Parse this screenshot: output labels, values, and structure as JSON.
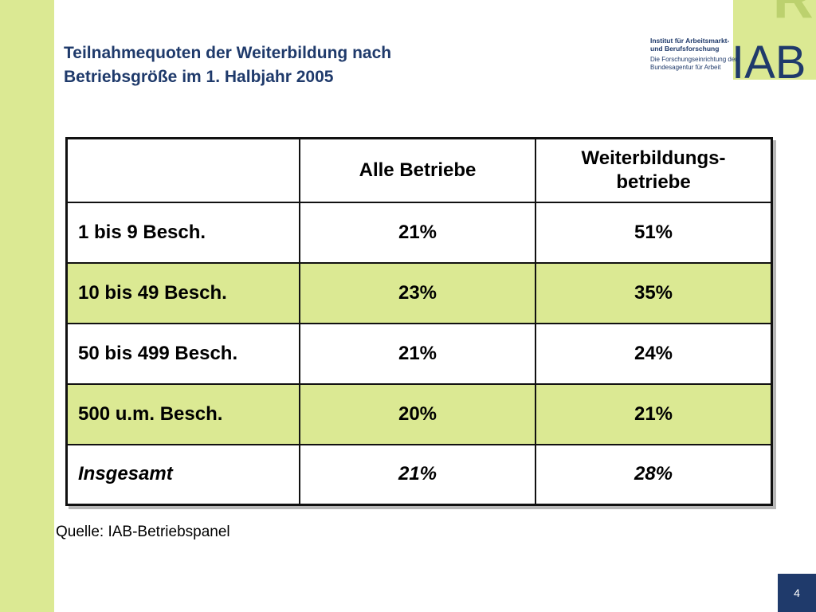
{
  "slide": {
    "title_line1": "Teilnahmequoten der Weiterbildung nach",
    "title_line2": "Betriebsgröße im 1. Halbjahr 2005",
    "source": "Quelle: IAB-Betriebspanel",
    "page_number": "4"
  },
  "logo": {
    "line1": "Institut für Arbeitsmarkt-",
    "line2": "und Berufsforschung",
    "line3": "Die Forschungseinrichtung der",
    "line4": "Bundesagentur für Arbeit",
    "wordmark": "IAB"
  },
  "table": {
    "headers": [
      "",
      "Alle Betriebe",
      "Weiterbildungs-betriebe"
    ],
    "header_col3_line1": "Weiterbildungs-",
    "header_col3_line2": "betriebe",
    "rows": [
      {
        "label": "1 bis 9 Besch.",
        "alle": "21%",
        "wb": "51%"
      },
      {
        "label": "10 bis 49 Besch.",
        "alle": "23%",
        "wb": "35%"
      },
      {
        "label": "50 bis 499 Besch.",
        "alle": "21%",
        "wb": "24%"
      },
      {
        "label": "500 u.m. Besch.",
        "alle": "20%",
        "wb": "21%"
      },
      {
        "label": "Insgesamt",
        "alle": "21%",
        "wb": "28%"
      }
    ]
  },
  "colors": {
    "accent_green": "#dbe993",
    "navy": "#1f3a6b"
  }
}
